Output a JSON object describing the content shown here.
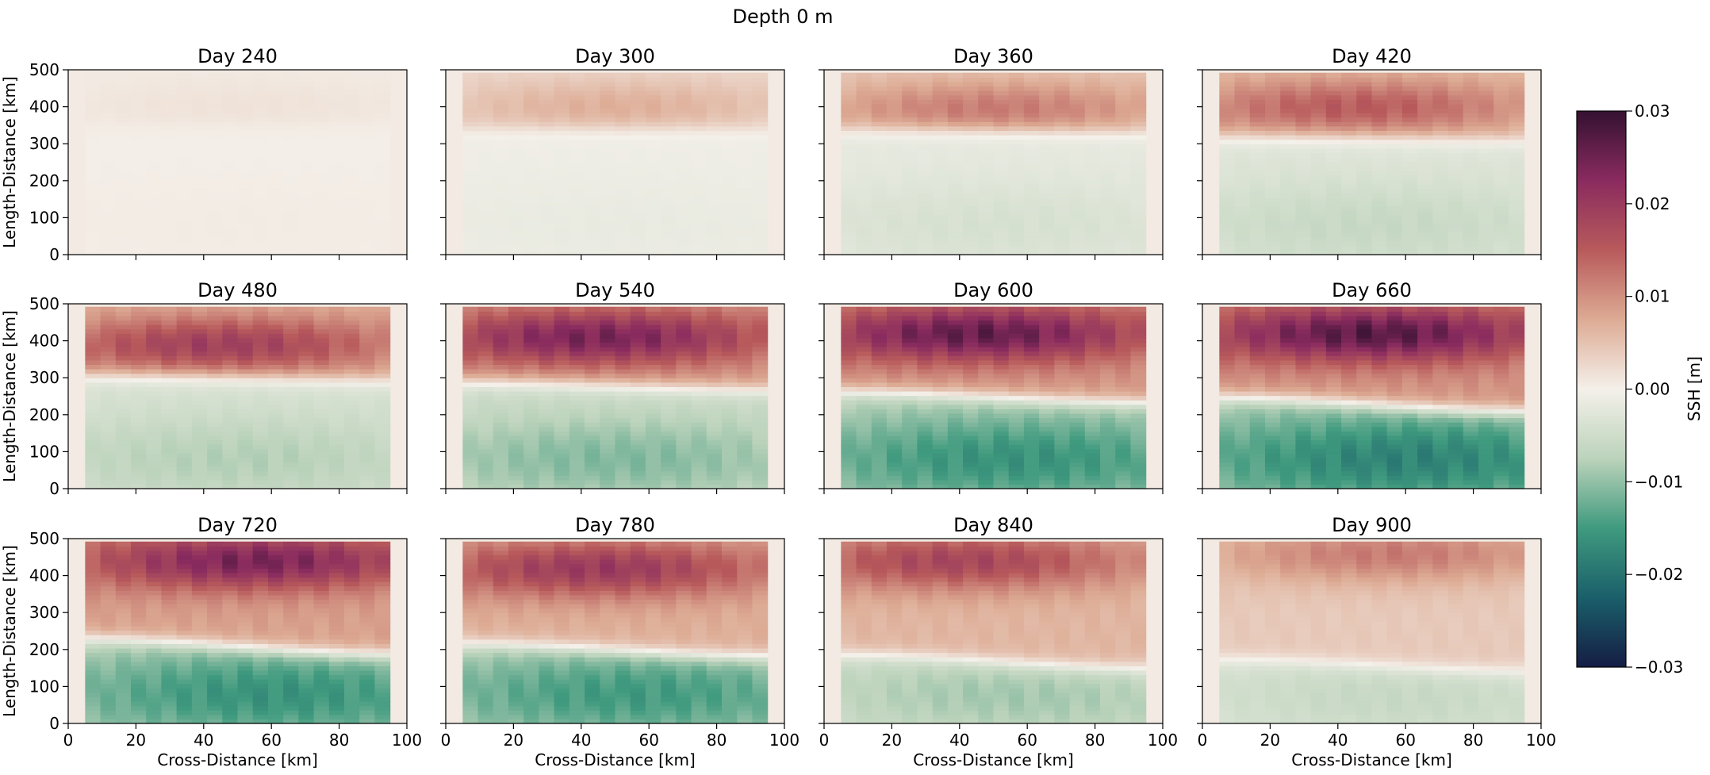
{
  "figure": {
    "suptitle": "Depth 0 m"
  },
  "colorbar": {
    "label": "SSH [m]",
    "min": -0.03,
    "max": 0.03,
    "ticks": [
      "0.03",
      "0.02",
      "0.01",
      "0.00",
      "−0.01",
      "−0.02",
      "−0.03"
    ],
    "colormap": "curl (diverging: navy → teal → white → salmon → plum)",
    "stops": [
      "#151d44",
      "#1a5f6a",
      "#3f9a7e",
      "#bcd3bb",
      "#f4f0ea",
      "#ddab94",
      "#b85a5b",
      "#8a2b5f",
      "#341131"
    ]
  },
  "axes_common": {
    "xlabel": "Cross-Distance [km]",
    "ylabel": "Length-Distance [km]",
    "xlim": [
      0,
      100
    ],
    "ylim": [
      0,
      500
    ],
    "xticks": [
      "0",
      "20",
      "40",
      "60",
      "80",
      "100"
    ],
    "yticks": [
      "0",
      "100",
      "200",
      "300",
      "400",
      "500"
    ]
  },
  "chart_data": {
    "type": "heatmap",
    "description_units": "SSH in m over a 100 km x 500 km domain; field defined for x in [5, 95] km",
    "panels": [
      {
        "title": "Day 240",
        "day": 240,
        "north_peak": 0.0015,
        "south_peak": 0.0005,
        "front_y": 350,
        "north_center_y": 400,
        "north_center_x": 50,
        "south_center_x": 50,
        "tilt": 0
      },
      {
        "title": "Day 300",
        "day": 300,
        "north_peak": 0.007,
        "south_peak": -0.0015,
        "front_y": 340,
        "north_center_y": 400,
        "north_center_x": 50,
        "south_center_x": 50,
        "tilt": 0
      },
      {
        "title": "Day 360",
        "day": 360,
        "north_peak": 0.012,
        "south_peak": -0.004,
        "front_y": 335,
        "north_center_y": 395,
        "north_center_x": 50,
        "south_center_x": 50,
        "tilt": 0.3
      },
      {
        "title": "Day 420",
        "day": 420,
        "north_peak": 0.015,
        "south_peak": -0.006,
        "front_y": 315,
        "north_center_y": 400,
        "north_center_x": 45,
        "south_center_x": 50,
        "tilt": 0.3
      },
      {
        "title": "Day 480",
        "day": 480,
        "north_peak": 0.019,
        "south_peak": -0.008,
        "front_y": 300,
        "north_center_y": 390,
        "north_center_x": 45,
        "south_center_x": 50,
        "tilt": 0.5
      },
      {
        "title": "Day 540",
        "day": 540,
        "north_peak": 0.024,
        "south_peak": -0.011,
        "front_y": 280,
        "north_center_y": 410,
        "north_center_x": 45,
        "south_center_x": 50,
        "tilt": 0.8
      },
      {
        "title": "Day 600",
        "day": 600,
        "north_peak": 0.026,
        "south_peak": -0.016,
        "front_y": 250,
        "north_center_y": 420,
        "north_center_x": 45,
        "south_center_x": 55,
        "tilt": 1.2
      },
      {
        "title": "Day 660",
        "day": 660,
        "north_peak": 0.027,
        "south_peak": -0.018,
        "front_y": 230,
        "north_center_y": 420,
        "north_center_x": 50,
        "south_center_x": 60,
        "tilt": 1.6
      },
      {
        "title": "Day 720",
        "day": 720,
        "north_peak": 0.024,
        "south_peak": -0.016,
        "front_y": 210,
        "north_center_y": 440,
        "north_center_x": 55,
        "south_center_x": 60,
        "tilt": 1.8
      },
      {
        "title": "Day 780",
        "day": 780,
        "north_peak": 0.02,
        "south_peak": -0.015,
        "front_y": 200,
        "north_center_y": 420,
        "north_center_x": 45,
        "south_center_x": 55,
        "tilt": 1.5
      },
      {
        "title": "Day 840",
        "day": 840,
        "north_peak": 0.018,
        "south_peak": -0.009,
        "front_y": 170,
        "north_center_y": 440,
        "north_center_x": 40,
        "south_center_x": 55,
        "tilt": 1.6
      },
      {
        "title": "Day 900",
        "day": 900,
        "north_peak": 0.012,
        "south_peak": -0.006,
        "front_y": 160,
        "north_center_y": 460,
        "north_center_x": 55,
        "south_center_x": 55,
        "tilt": 1.4
      }
    ]
  }
}
